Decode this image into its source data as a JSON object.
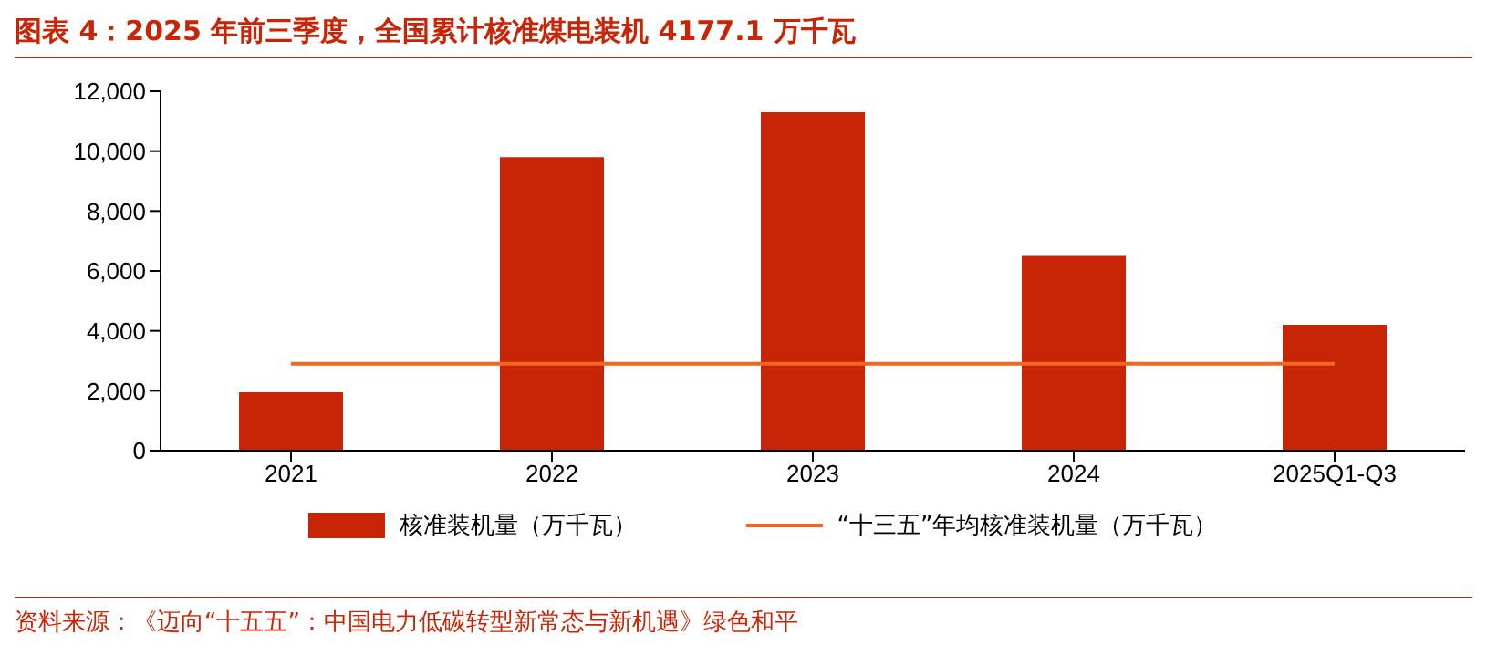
{
  "chart_data": {
    "type": "bar",
    "title": "图表 4：2025 年前三季度，全国累计核准煤电装机 4177.1 万千瓦",
    "categories": [
      "2021",
      "2022",
      "2023",
      "2024",
      "2025Q1-Q3"
    ],
    "series": [
      {
        "name": "核准装机量（万千瓦）",
        "color": "#c82506",
        "values": [
          1950,
          9800,
          11300,
          6500,
          4200
        ]
      },
      {
        "name": "“十三五”年均核准装机量（万千瓦）",
        "type": "line",
        "color": "#f26522",
        "values": [
          2900,
          2900,
          2900,
          2900,
          2900
        ]
      }
    ],
    "ylim": [
      0,
      12000
    ],
    "yticks": [
      0,
      {
        "value": 2000,
        "label": "2,000"
      },
      {
        "value": 4000,
        "label": "4,000"
      },
      {
        "value": 6000,
        "label": "6,000"
      },
      {
        "value": 8000,
        "label": "8,000"
      },
      {
        "value": 10000,
        "label": "10,000"
      },
      {
        "value": 12000,
        "label": "12,000"
      }
    ],
    "grid": false,
    "legend": "bottom",
    "marker": "none",
    "annotations": [
      "资料来源：《迈向“十五五”：中国电力低碳转型新常态与新机遇》绿色和平"
    ]
  }
}
